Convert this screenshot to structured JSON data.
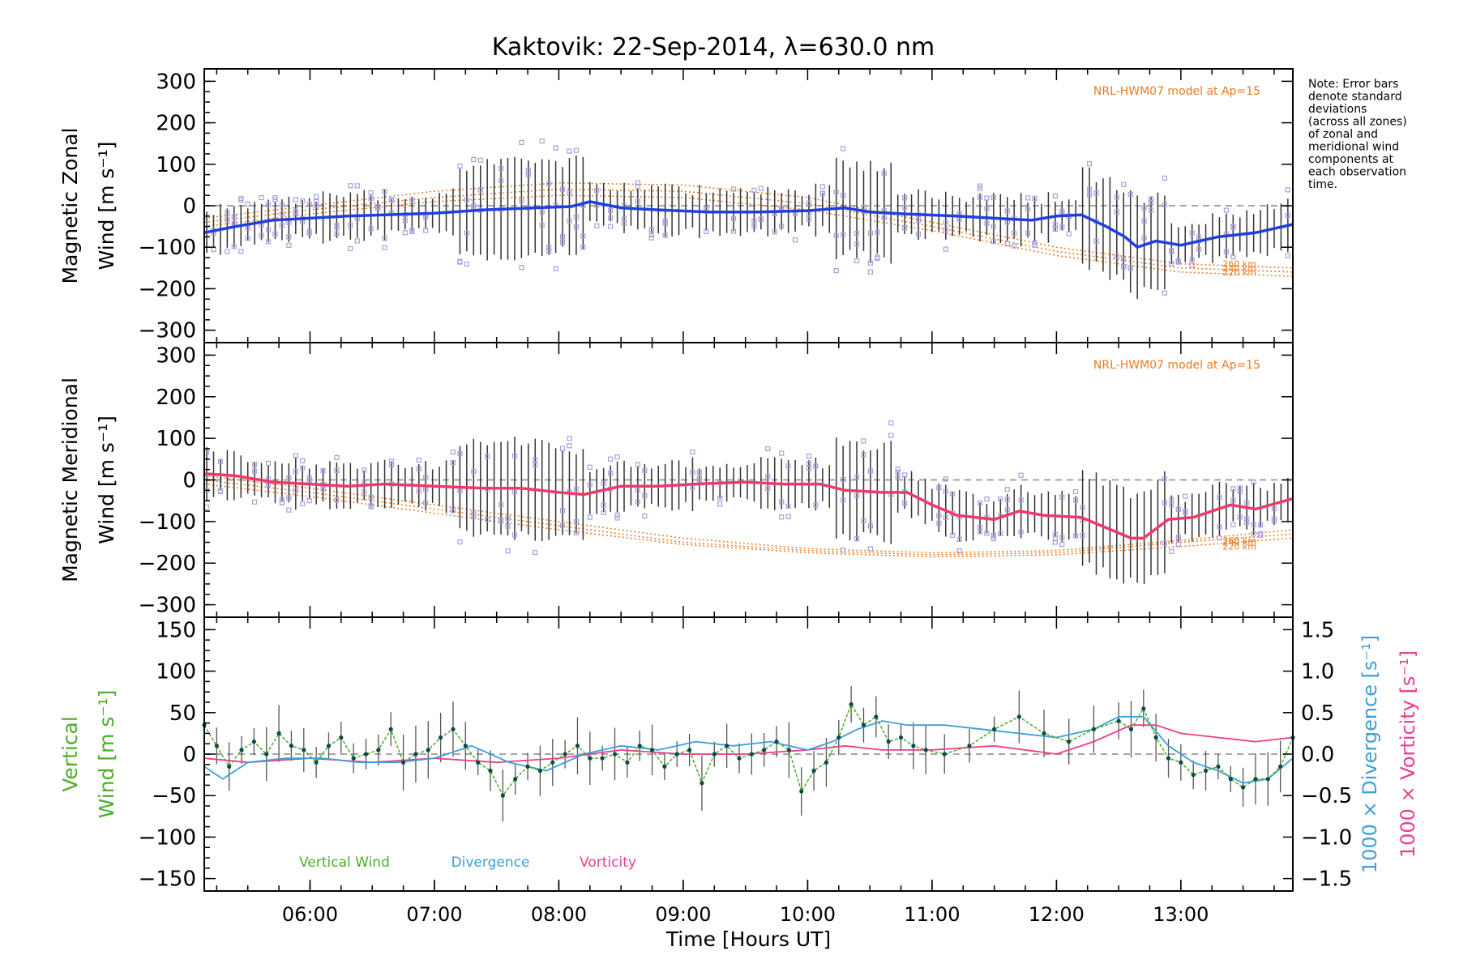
{
  "title": "Kaktovik: 22-Sep-2014, λ=630.0 nm",
  "note": [
    "Note: Error bars",
    "denote standard",
    "deviations",
    "(across all zones)",
    "of zonal and",
    "meridional wind",
    "components at",
    "each observation",
    "time."
  ],
  "colors": {
    "zonal": "#1f3fe0",
    "meridional": "#f0386b",
    "vertical": "#4caf28",
    "divergence": "#3b9fd8",
    "vorticity": "#ee3d8a",
    "model": "#f07a20",
    "scatter": "#a9a0e0",
    "errorbar": "#333333"
  },
  "chart_data": [
    {
      "type": "line",
      "panel": "zonal",
      "ylabel": [
        "Magnetic Zonal",
        "Wind [m s⁻¹]"
      ],
      "ylim": [
        -330,
        330
      ],
      "yticks": [
        300,
        200,
        100,
        0,
        -100,
        -200,
        -300
      ],
      "xlim": [
        5.15,
        13.9
      ],
      "model_label": "NRL-HWM07 model at Ap=15",
      "model_altitude_labels": [
        "260 km",
        "240 km",
        "220 km"
      ],
      "series": [
        {
          "x": [
            5.15,
            5.4,
            5.7,
            6.0,
            6.3,
            6.6,
            7.0,
            7.4,
            7.8,
            8.1,
            8.25,
            8.5,
            8.8,
            9.2,
            9.6,
            10.0,
            10.3,
            10.5,
            10.8,
            11.2,
            11.5,
            11.8,
            12.0,
            12.2,
            12.4,
            12.55,
            12.65,
            12.8,
            13.0,
            13.3,
            13.6,
            13.9
          ],
          "y": [
            -65,
            -50,
            -35,
            -30,
            -25,
            -22,
            -18,
            -10,
            -5,
            -2,
            10,
            -5,
            -10,
            -15,
            -15,
            -12,
            -5,
            -15,
            -20,
            -25,
            -30,
            -35,
            -25,
            -22,
            -50,
            -75,
            -100,
            -85,
            -95,
            -75,
            -65,
            -45
          ]
        }
      ],
      "model_lines": [
        {
          "x": [
            5.15,
            6.0,
            7.0,
            8.0,
            9.0,
            10.0,
            11.0,
            12.0,
            13.0,
            13.9
          ],
          "y": [
            -30,
            0,
            35,
            55,
            50,
            20,
            -40,
            -100,
            -140,
            -150
          ]
        },
        {
          "x": [
            5.15,
            6.0,
            7.0,
            8.0,
            9.0,
            10.0,
            11.0,
            12.0,
            13.0,
            13.9
          ],
          "y": [
            -40,
            -10,
            20,
            40,
            35,
            5,
            -50,
            -110,
            -150,
            -160
          ]
        },
        {
          "x": [
            5.15,
            6.0,
            7.0,
            8.0,
            9.0,
            10.0,
            11.0,
            12.0,
            13.0,
            13.9
          ],
          "y": [
            -50,
            -20,
            10,
            25,
            20,
            -10,
            -60,
            -120,
            -160,
            -170
          ]
        }
      ]
    },
    {
      "type": "line",
      "panel": "meridional",
      "ylabel": [
        "Magnetic Meridional",
        "Wind [m s⁻¹]"
      ],
      "ylim": [
        -330,
        330
      ],
      "yticks": [
        300,
        200,
        100,
        0,
        -100,
        -200,
        -300
      ],
      "xlim": [
        5.15,
        13.9
      ],
      "model_label": "NRL-HWM07 model at Ap=15",
      "model_altitude_labels": [
        "260 km",
        "240 km",
        "220 km"
      ],
      "series": [
        {
          "x": [
            5.15,
            5.4,
            5.7,
            6.0,
            6.3,
            6.6,
            7.0,
            7.4,
            7.7,
            8.0,
            8.2,
            8.5,
            8.8,
            9.1,
            9.5,
            9.8,
            10.1,
            10.3,
            10.6,
            10.8,
            11.0,
            11.2,
            11.5,
            11.7,
            11.9,
            12.2,
            12.4,
            12.6,
            12.7,
            12.9,
            13.1,
            13.4,
            13.6,
            13.9
          ],
          "y": [
            15,
            10,
            -5,
            -10,
            -15,
            -10,
            -15,
            -20,
            -20,
            -30,
            -35,
            -15,
            -15,
            -10,
            -5,
            -10,
            -10,
            -25,
            -30,
            -30,
            -60,
            -85,
            -95,
            -75,
            -85,
            -90,
            -115,
            -140,
            -140,
            -95,
            -90,
            -60,
            -70,
            -45
          ]
        }
      ],
      "model_lines": [
        {
          "x": [
            5.15,
            6.0,
            7.0,
            8.0,
            9.0,
            10.0,
            11.0,
            12.0,
            13.0,
            13.9
          ],
          "y": [
            10,
            -20,
            -60,
            -100,
            -140,
            -165,
            -175,
            -170,
            -145,
            -120
          ]
        },
        {
          "x": [
            5.15,
            6.0,
            7.0,
            8.0,
            9.0,
            10.0,
            11.0,
            12.0,
            13.0,
            13.9
          ],
          "y": [
            0,
            -30,
            -70,
            -110,
            -150,
            -170,
            -180,
            -175,
            -150,
            -130
          ]
        },
        {
          "x": [
            5.15,
            6.0,
            7.0,
            8.0,
            9.0,
            10.0,
            11.0,
            12.0,
            13.0,
            13.9
          ],
          "y": [
            -10,
            -40,
            -80,
            -120,
            -155,
            -175,
            -185,
            -180,
            -160,
            -140
          ]
        }
      ]
    },
    {
      "type": "line",
      "panel": "vertical",
      "ylabel": [
        "Vertical",
        "Wind [m s⁻¹]"
      ],
      "ylabel_right_1": "1000 × Divergence [s⁻¹]",
      "ylabel_right_2": "1000 × Vorticity [s⁻¹]",
      "ylim": [
        -165,
        165
      ],
      "yticks": [
        150,
        100,
        50,
        0,
        -50,
        -100,
        -150
      ],
      "y2lim": [
        -1.65,
        1.65
      ],
      "y2ticks": [
        "1.5",
        "1.0",
        "0.5",
        "0.0",
        "−0.5",
        "−1.0",
        "−1.5"
      ],
      "xlim": [
        5.15,
        13.9
      ],
      "xticks": [
        "06:00",
        "07:00",
        "08:00",
        "09:00",
        "10:00",
        "11:00",
        "12:00",
        "13:00"
      ],
      "xlabel": "Time [Hours UT]",
      "legend": [
        "Vertical Wind",
        "Divergence",
        "Vorticity"
      ],
      "series": [
        {
          "name": "Vertical Wind",
          "x": [
            5.15,
            5.25,
            5.35,
            5.45,
            5.55,
            5.65,
            5.75,
            5.85,
            5.95,
            6.05,
            6.15,
            6.25,
            6.35,
            6.45,
            6.55,
            6.65,
            6.75,
            6.85,
            6.95,
            7.05,
            7.15,
            7.25,
            7.35,
            7.45,
            7.55,
            7.65,
            7.75,
            7.85,
            7.95,
            8.05,
            8.15,
            8.25,
            8.35,
            8.45,
            8.55,
            8.65,
            8.75,
            8.85,
            8.95,
            9.05,
            9.15,
            9.25,
            9.35,
            9.45,
            9.55,
            9.65,
            9.75,
            9.85,
            9.95,
            10.05,
            10.15,
            10.25,
            10.35,
            10.45,
            10.55,
            10.65,
            10.75,
            10.85,
            10.95,
            11.1,
            11.3,
            11.5,
            11.7,
            11.9,
            12.1,
            12.3,
            12.5,
            12.6,
            12.7,
            12.8,
            12.9,
            13.0,
            13.1,
            13.2,
            13.3,
            13.4,
            13.5,
            13.6,
            13.7,
            13.8,
            13.9
          ],
          "y": [
            35,
            10,
            -15,
            5,
            15,
            0,
            25,
            10,
            5,
            -10,
            10,
            20,
            -5,
            0,
            5,
            30,
            -10,
            0,
            5,
            20,
            30,
            10,
            -10,
            -20,
            -50,
            -30,
            -15,
            -20,
            -10,
            0,
            10,
            -5,
            -5,
            0,
            -10,
            10,
            5,
            -15,
            0,
            5,
            -35,
            0,
            10,
            -5,
            0,
            5,
            15,
            5,
            -45,
            -20,
            -10,
            20,
            60,
            35,
            45,
            15,
            20,
            10,
            5,
            0,
            10,
            30,
            45,
            25,
            15,
            30,
            40,
            30,
            55,
            20,
            -5,
            -10,
            -25,
            -20,
            -15,
            -30,
            -40,
            -30,
            -30,
            -15,
            20
          ]
        },
        {
          "name": "Divergence",
          "x": [
            5.15,
            5.3,
            5.5,
            5.8,
            6.1,
            6.4,
            6.7,
            7.0,
            7.3,
            7.6,
            7.9,
            8.2,
            8.5,
            8.8,
            9.1,
            9.4,
            9.7,
            10.0,
            10.2,
            10.4,
            10.6,
            10.8,
            11.1,
            11.4,
            11.7,
            12.0,
            12.3,
            12.5,
            12.7,
            12.9,
            13.1,
            13.3,
            13.5,
            13.7,
            13.9
          ],
          "y": [
            -0.15,
            -0.3,
            -0.1,
            -0.05,
            -0.05,
            -0.1,
            -0.1,
            -0.05,
            0.1,
            -0.1,
            -0.2,
            0.0,
            0.1,
            0.05,
            0.15,
            0.1,
            0.15,
            0.05,
            0.15,
            0.3,
            0.4,
            0.35,
            0.35,
            0.3,
            0.25,
            0.2,
            0.3,
            0.45,
            0.45,
            0.1,
            -0.1,
            -0.2,
            -0.35,
            -0.3,
            -0.05
          ]
        },
        {
          "name": "Vorticity",
          "x": [
            5.15,
            5.5,
            6.0,
            6.5,
            7.0,
            7.5,
            8.0,
            8.5,
            9.0,
            9.5,
            10.0,
            10.3,
            10.6,
            11.0,
            11.5,
            12.0,
            12.3,
            12.6,
            12.8,
            13.0,
            13.3,
            13.6,
            13.9
          ],
          "y": [
            -0.05,
            -0.1,
            -0.05,
            -0.1,
            -0.05,
            -0.1,
            -0.05,
            0.05,
            0.0,
            0.0,
            0.05,
            0.1,
            0.05,
            0.05,
            0.1,
            0.0,
            0.15,
            0.35,
            0.35,
            0.25,
            0.2,
            0.15,
            0.2
          ]
        }
      ]
    }
  ]
}
